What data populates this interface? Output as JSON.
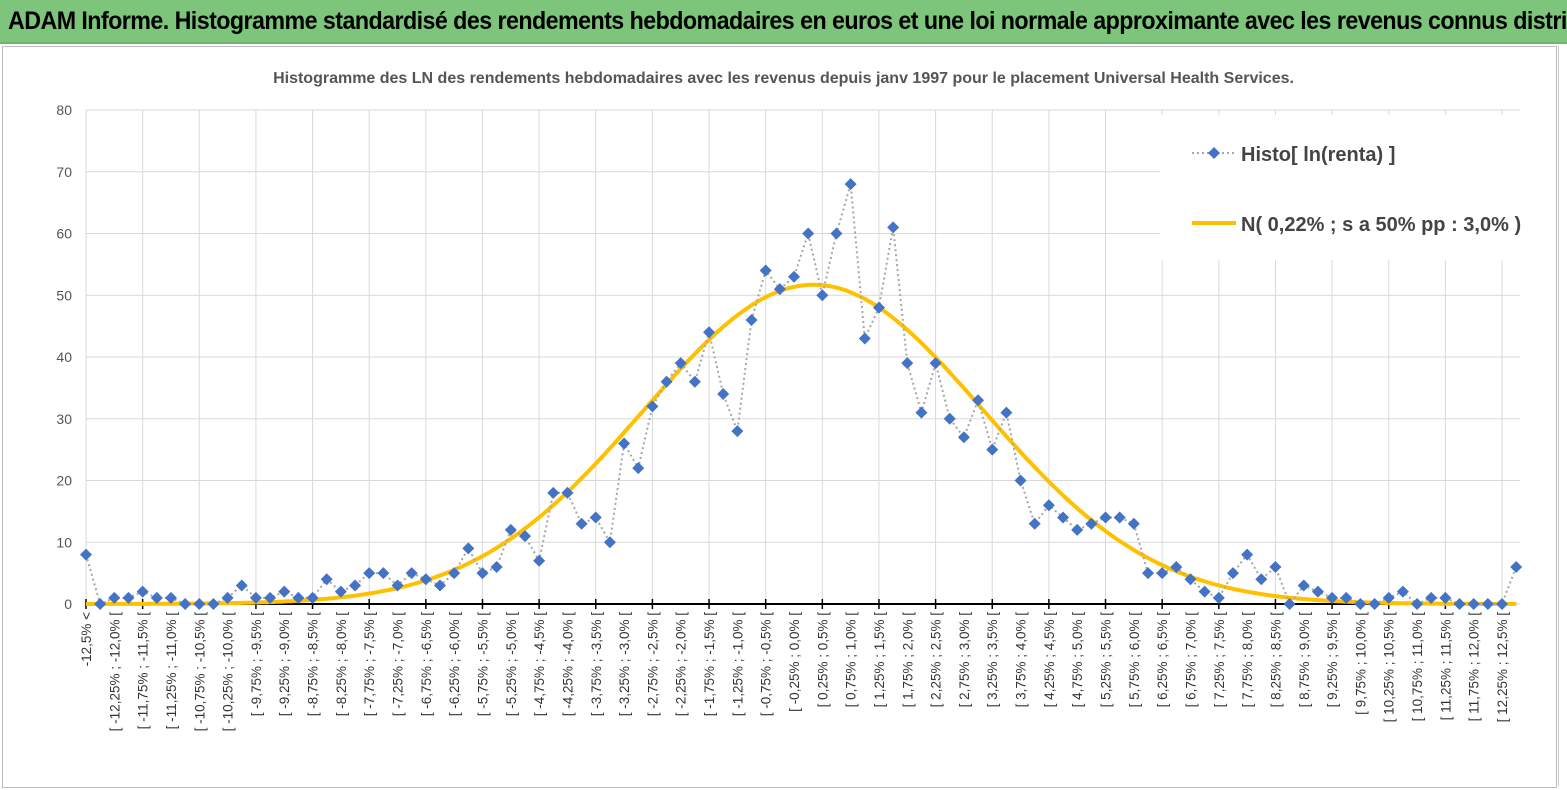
{
  "header": {
    "title": "ADAM Informe. Histogramme standardisé des rendements hebdomadaires en euros et une loi normale approximante avec les revenus connus distribués"
  },
  "colors": {
    "header_bg": "#7cc57a",
    "histo": "#4472c4",
    "normal": "#ffc000",
    "grid": "#d9d9d9"
  },
  "chart_data": {
    "type": "line",
    "title": "Histogramme  des LN des rendements hebdomadaires avec les revenus depuis janv 1997 pour le placement Universal Health Services.",
    "ylim": [
      0,
      80
    ],
    "yticks": [
      "0",
      "10",
      "20",
      "30",
      "40",
      "50",
      "60",
      "70",
      "80"
    ],
    "grid": true,
    "legend_position": "top-right",
    "tick_labels": [
      "-12,5% <",
      "[ -12,25% ; -12,0% [",
      "[ -11,75% ; -11,5% [",
      "[ -11,25% ; -11,0% [",
      "[ -10,75% ; -10,5% [",
      "[ -10,25% ; -10,0% [",
      "[ -9,75% ; -9,5% [",
      "[ -9,25% ; -9,0% [",
      "[ -8,75% ; -8,5% [",
      "[ -8,25% ; -8,0% [",
      "[ -7,75% ; -7,5% [",
      "[ -7,25% ; -7,0% [",
      "[ -6,75% ; -6,5% [",
      "[ -6,25% ; -6,0% [",
      "[ -5,75% ; -5,5% [",
      "[ -5,25% ; -5,0% [",
      "[ -4,75% ; -4,5% [",
      "[ -4,25% ; -4,0% [",
      "[ -3,75% ; -3,5% [",
      "[ -3,25% ; -3,0% [",
      "[ -2,75% ; -2,5% [",
      "[ -2,25% ; -2,0% [",
      "[ -1,75% ; -1,5% [",
      "[ -1,25% ; -1,0% [",
      "[ -0,75% ; -0,5% [",
      "[ -0,25% ; 0,0% [",
      "[ 0,25% ; 0,5% [",
      "[ 0,75% ; 1,0% [",
      "[ 1,25% ; 1,5% [",
      "[ 1,75% ; 2,0% [",
      "[ 2,25% ; 2,5% [",
      "[ 2,75% ; 3,0% [",
      "[ 3,25% ; 3,5% [",
      "[ 3,75% ; 4,0% [",
      "[ 4,25% ; 4,5% [",
      "[ 4,75% ; 5,0% [",
      "[ 5,25% ; 5,5% [",
      "[ 5,75% ; 6,0% [",
      "[ 6,25% ; 6,5% [",
      "[ 6,75% ; 7,0% [",
      "[ 7,25% ; 7,5% [",
      "[ 7,75% ; 8,0% [",
      "[ 8,25% ; 8,5% [",
      "[ 8,75% ; 9,0% [",
      "[ 9,25% ; 9,5% [",
      "[ 9,75% ; 10,0% [",
      "[ 10,25% ; 10,5% [",
      "[ 10,75% ; 11,0% [",
      "[ 11,25% ; 11,5% [",
      "[ 11,75% ; 12,0% [",
      "[ 12,25% ; 12,5% ["
    ],
    "series": [
      {
        "name": "Histo[ ln(renta) ]",
        "style": "dotted-line-diamond-markers",
        "values": [
          8,
          0,
          1,
          1,
          2,
          1,
          1,
          0,
          0,
          0,
          1,
          3,
          1,
          1,
          2,
          1,
          1,
          4,
          2,
          3,
          5,
          5,
          3,
          5,
          4,
          3,
          5,
          9,
          5,
          6,
          12,
          11,
          7,
          18,
          18,
          13,
          14,
          10,
          26,
          22,
          32,
          36,
          39,
          36,
          44,
          34,
          28,
          46,
          54,
          51,
          53,
          60,
          50,
          60,
          68,
          43,
          48,
          61,
          39,
          31,
          39,
          30,
          27,
          33,
          25,
          31,
          20,
          13,
          16,
          14,
          12,
          13,
          14,
          14,
          13,
          5,
          5,
          6,
          4,
          2,
          1,
          5,
          8,
          4,
          6,
          0,
          3,
          2,
          1,
          1,
          0,
          0,
          1,
          2,
          0,
          1,
          1,
          0,
          0,
          0,
          0,
          6
        ]
      },
      {
        "name": "N( 0,22% ; s a 50% pp : 3,0% )",
        "style": "smooth-line",
        "mean_pct": 0.22,
        "sd_pct": 3.0,
        "peak": 51.7
      }
    ]
  }
}
